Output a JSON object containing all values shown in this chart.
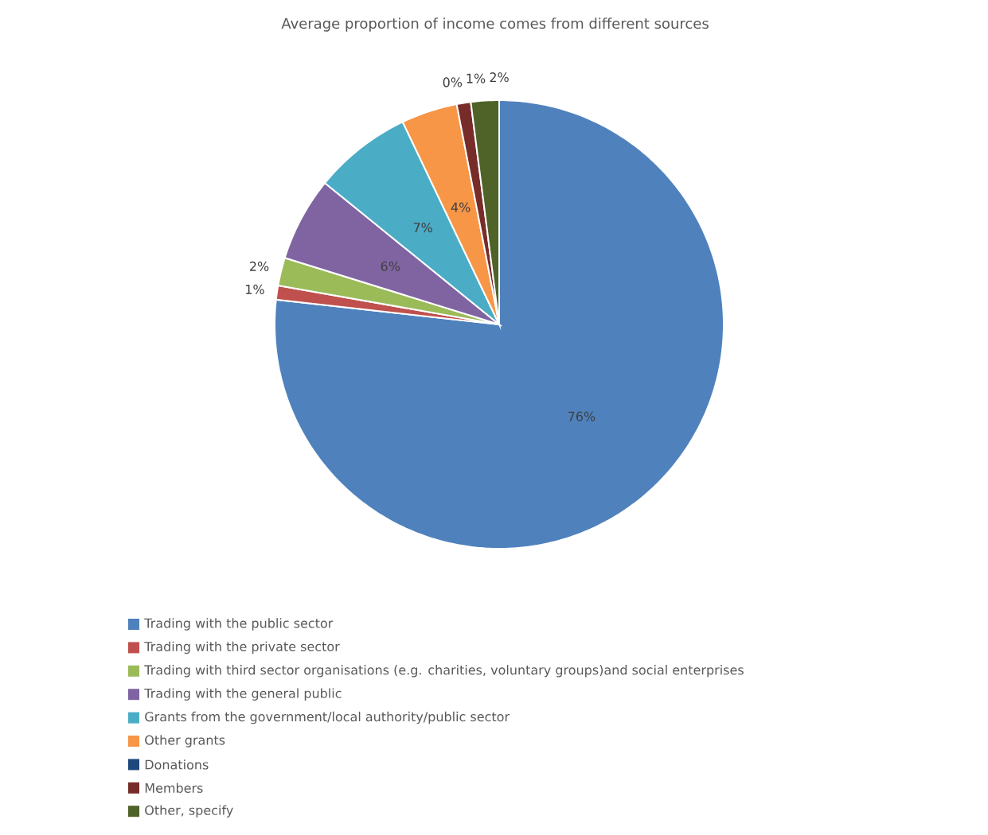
{
  "chart_data": {
    "type": "pie",
    "title": "Average proportion of income comes from different sources",
    "categories": [
      "Trading with the public sector",
      "Trading with the private sector",
      "Trading with third sector organisations (e.g. charities, voluntary groups)and social enterprises",
      "Trading with the general public",
      "Grants from the government/local authority/public sector",
      "Other grants",
      "Donations",
      "Members",
      "Other, specify"
    ],
    "values": [
      76,
      1,
      2,
      6,
      7,
      4,
      0,
      1,
      2
    ],
    "value_labels": [
      "76%",
      "1%",
      "2%",
      "6%",
      "7%",
      "4%",
      "0%",
      "1%",
      "2%"
    ],
    "colors": [
      "#4f81bd",
      "#c0504d",
      "#9bbb59",
      "#8064a2",
      "#4bacc6",
      "#f79646",
      "#1f497d",
      "#772c2a",
      "#4f6228"
    ],
    "legend": "bottom"
  }
}
